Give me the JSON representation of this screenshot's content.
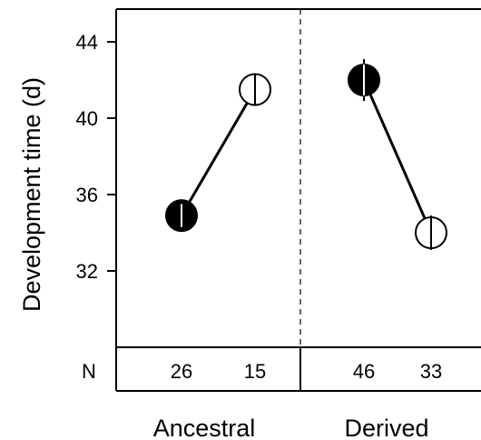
{
  "chart_data": {
    "type": "scatter",
    "ylabel": "Development time (d)",
    "ylim": [
      28,
      46
    ],
    "yticks": [
      32,
      36,
      40,
      44
    ],
    "ytick_labels": [
      "32",
      "36",
      "40",
      "44"
    ],
    "groups": [
      "Ancestral",
      "Derived"
    ],
    "n_row_label": "N",
    "points": [
      {
        "group": "Ancestral",
        "fill": "filled",
        "y": 34.9,
        "err": 0.6,
        "n": "26"
      },
      {
        "group": "Ancestral",
        "fill": "open",
        "y": 41.5,
        "err": 0.8,
        "n": "15"
      },
      {
        "group": "Derived",
        "fill": "filled",
        "y": 42.0,
        "err": 1.1,
        "n": "46"
      },
      {
        "group": "Derived",
        "fill": "open",
        "y": 34.0,
        "err": 0.9,
        "n": "33"
      }
    ],
    "connections": [
      [
        0,
        1
      ],
      [
        2,
        3
      ]
    ],
    "divider": "dashed",
    "colors": {
      "ink": "#000000",
      "open_fill": "#ffffff",
      "filled": "#000000"
    }
  }
}
